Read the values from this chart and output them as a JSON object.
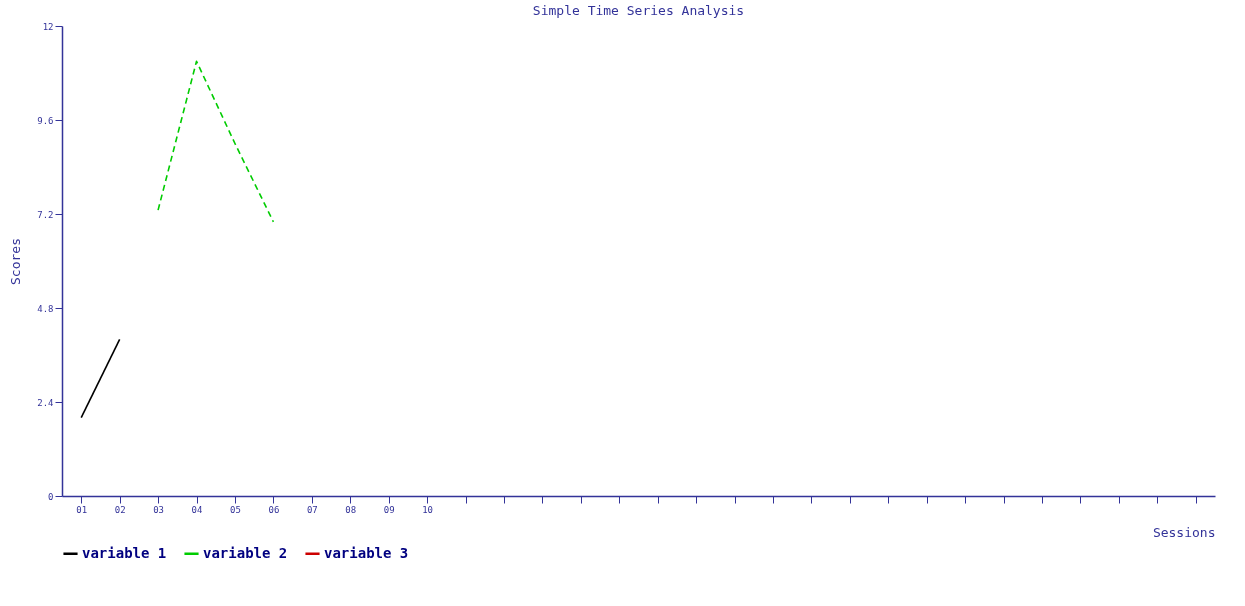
{
  "chart_data": {
    "type": "line",
    "title": "Simple Time Series Analysis",
    "xlabel": "Sessions",
    "ylabel": "Scores",
    "categories": [
      "01",
      "02",
      "03",
      "04",
      "05",
      "06",
      "07",
      "08",
      "09",
      "10",
      null,
      null,
      null,
      null,
      null,
      null,
      null,
      null,
      null,
      null,
      null,
      null,
      null,
      null,
      null,
      null,
      null,
      null,
      null,
      null
    ],
    "series": [
      {
        "name": "variable 1",
        "color": "#000000",
        "line_style": "solid",
        "values": [
          2.0,
          4.0,
          null,
          null,
          null,
          null,
          null,
          null,
          null,
          null,
          null,
          null,
          null,
          null,
          null,
          null,
          null,
          null,
          null,
          null,
          null,
          null,
          null,
          null,
          null,
          null,
          null,
          null,
          null,
          null
        ]
      },
      {
        "name": "variable 2",
        "color": "#00cc00",
        "line_style": "dashed",
        "values": [
          null,
          null,
          7.3,
          11.1,
          9.0,
          7.0,
          null,
          null,
          null,
          null,
          null,
          null,
          null,
          null,
          null,
          null,
          null,
          null,
          null,
          null,
          null,
          null,
          null,
          null,
          null,
          null,
          null,
          null,
          null,
          null
        ]
      },
      {
        "name": "variable 3",
        "color": "#cc0000",
        "line_style": "dashed",
        "values": [
          null,
          null,
          null,
          null,
          null,
          null,
          null,
          null,
          null,
          null,
          null,
          null,
          null,
          null,
          null,
          null,
          null,
          null,
          null,
          null,
          null,
          null,
          null,
          null,
          null,
          null,
          null,
          null,
          null,
          null
        ]
      }
    ],
    "ylim": [
      0,
      12
    ],
    "yticks": [
      0,
      2.4,
      4.8,
      7.2,
      9.6,
      12
    ],
    "grid": false,
    "legend": "bottom",
    "marker": "none"
  }
}
